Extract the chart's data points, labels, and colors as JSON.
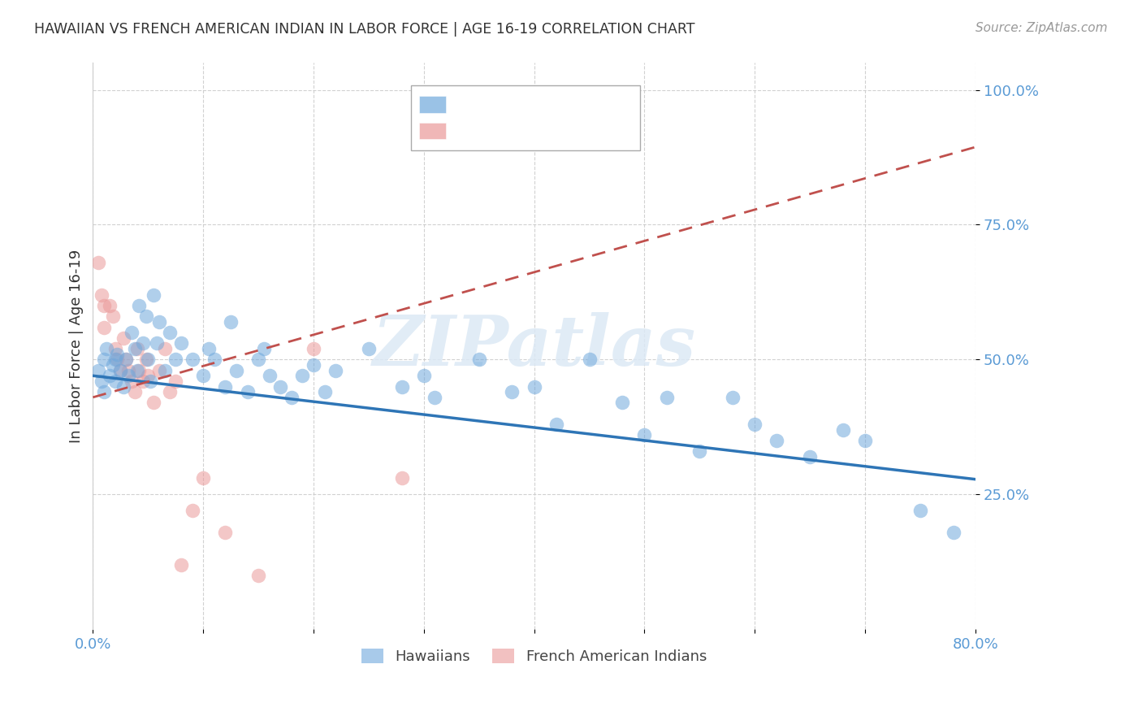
{
  "title": "HAWAIIAN VS FRENCH AMERICAN INDIAN IN LABOR FORCE | AGE 16-19 CORRELATION CHART",
  "source": "Source: ZipAtlas.com",
  "ylabel": "In Labor Force | Age 16-19",
  "xlim": [
    0.0,
    0.8
  ],
  "ylim": [
    0.0,
    1.05
  ],
  "hawaiian_color": "#6fa8dc",
  "french_color": "#ea9999",
  "hawaiian_line_color": "#2e75b6",
  "french_line_color": "#c0504d",
  "legend_label_hawaiians": "Hawaiians",
  "legend_label_french": "French American Indians",
  "watermark": "ZIPatlas",
  "hawaiian_x": [
    0.005,
    0.008,
    0.01,
    0.01,
    0.012,
    0.015,
    0.018,
    0.02,
    0.02,
    0.022,
    0.025,
    0.028,
    0.03,
    0.032,
    0.035,
    0.038,
    0.04,
    0.042,
    0.045,
    0.048,
    0.05,
    0.052,
    0.055,
    0.058,
    0.06,
    0.065,
    0.07,
    0.075,
    0.08,
    0.09,
    0.1,
    0.105,
    0.11,
    0.12,
    0.125,
    0.13,
    0.14,
    0.15,
    0.155,
    0.16,
    0.17,
    0.18,
    0.19,
    0.2,
    0.21,
    0.22,
    0.25,
    0.28,
    0.3,
    0.31,
    0.35,
    0.38,
    0.4,
    0.42,
    0.45,
    0.48,
    0.5,
    0.52,
    0.55,
    0.58,
    0.6,
    0.62,
    0.65,
    0.68,
    0.7,
    0.75,
    0.78
  ],
  "hawaiian_y": [
    0.48,
    0.46,
    0.5,
    0.44,
    0.52,
    0.47,
    0.49,
    0.5,
    0.46,
    0.51,
    0.48,
    0.45,
    0.5,
    0.47,
    0.55,
    0.52,
    0.48,
    0.6,
    0.53,
    0.58,
    0.5,
    0.46,
    0.62,
    0.53,
    0.57,
    0.48,
    0.55,
    0.5,
    0.53,
    0.5,
    0.47,
    0.52,
    0.5,
    0.45,
    0.57,
    0.48,
    0.44,
    0.5,
    0.52,
    0.47,
    0.45,
    0.43,
    0.47,
    0.49,
    0.44,
    0.48,
    0.52,
    0.45,
    0.47,
    0.43,
    0.5,
    0.44,
    0.45,
    0.38,
    0.5,
    0.42,
    0.36,
    0.43,
    0.33,
    0.43,
    0.38,
    0.35,
    0.32,
    0.37,
    0.35,
    0.22,
    0.18
  ],
  "french_x": [
    0.005,
    0.008,
    0.01,
    0.01,
    0.015,
    0.018,
    0.02,
    0.022,
    0.025,
    0.028,
    0.03,
    0.032,
    0.035,
    0.038,
    0.04,
    0.042,
    0.045,
    0.048,
    0.05,
    0.055,
    0.06,
    0.065,
    0.07,
    0.075,
    0.08,
    0.09,
    0.1,
    0.12,
    0.15,
    0.2,
    0.28
  ],
  "french_y": [
    0.68,
    0.62,
    0.6,
    0.56,
    0.6,
    0.58,
    0.52,
    0.5,
    0.48,
    0.54,
    0.5,
    0.48,
    0.46,
    0.44,
    0.52,
    0.48,
    0.46,
    0.5,
    0.47,
    0.42,
    0.48,
    0.52,
    0.44,
    0.46,
    0.12,
    0.22,
    0.28,
    0.18,
    0.1,
    0.52,
    0.28
  ],
  "background_color": "#ffffff",
  "grid_color": "#cccccc",
  "tick_color": "#5b9bd5"
}
